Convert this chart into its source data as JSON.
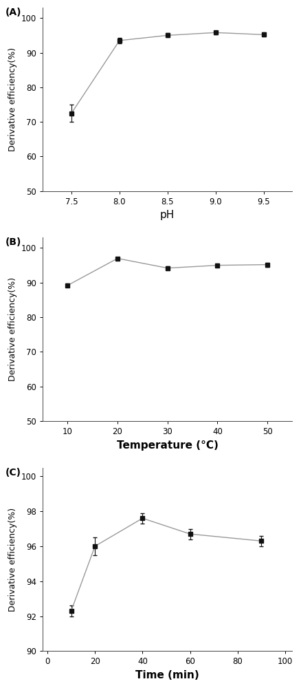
{
  "panel_A": {
    "label": "(A)",
    "x": [
      7.5,
      8.0,
      8.5,
      9.0,
      9.5
    ],
    "y": [
      72.5,
      93.5,
      95.0,
      95.8,
      95.2
    ],
    "yerr": [
      2.5,
      0.8,
      0.6,
      0.5,
      0.6
    ],
    "xlabel": "pH",
    "ylabel": "Derivative efficiency(%)",
    "xlim": [
      7.2,
      9.8
    ],
    "ylim": [
      50,
      103
    ],
    "yticks": [
      50,
      60,
      70,
      80,
      90,
      100
    ],
    "xticks": [
      7.5,
      8.0,
      8.5,
      9.0,
      9.5
    ],
    "xlabel_bold": false
  },
  "panel_B": {
    "label": "(B)",
    "x": [
      10,
      20,
      30,
      40,
      50
    ],
    "y": [
      89.2,
      97.0,
      94.2,
      95.0,
      95.2
    ],
    "yerr": [
      0.5,
      0.4,
      0.5,
      0.5,
      0.6
    ],
    "xlabel": "Temperature (°C)",
    "ylabel": "Derivative efficiency(%)",
    "xlim": [
      5,
      55
    ],
    "ylim": [
      50,
      103
    ],
    "yticks": [
      50,
      60,
      70,
      80,
      90,
      100
    ],
    "xticks": [
      10,
      20,
      30,
      40,
      50
    ],
    "xlabel_bold": true
  },
  "panel_C": {
    "label": "(C)",
    "x": [
      10,
      20,
      40,
      60,
      90
    ],
    "y": [
      92.3,
      96.0,
      97.6,
      96.7,
      96.3
    ],
    "yerr": [
      0.3,
      0.5,
      0.3,
      0.3,
      0.3
    ],
    "xlabel": "Time (min)",
    "ylabel": "Derivative efficiency(%)",
    "xlim": [
      -2,
      103
    ],
    "ylim": [
      90,
      100.5
    ],
    "yticks": [
      90,
      92,
      94,
      96,
      98,
      100
    ],
    "xticks": [
      0,
      20,
      40,
      60,
      80,
      100
    ],
    "xlabel_bold": true
  },
  "line_color": "#999999",
  "marker_color": "#111111",
  "marker": "s",
  "markersize": 4,
  "linewidth": 1.0,
  "capsize": 2.5,
  "elinewidth": 0.8,
  "ylabel_fontsize": 9,
  "xlabel_fontsize": 11,
  "tick_fontsize": 8.5,
  "panel_label_fontsize": 10
}
